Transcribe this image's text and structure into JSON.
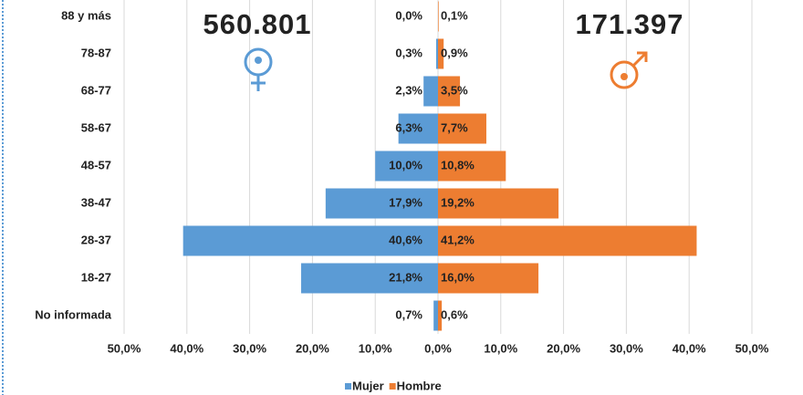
{
  "chart_data": {
    "type": "pyramid",
    "categories": [
      "88 y más",
      "78-87",
      "68-77",
      "58-67",
      "48-57",
      "38-47",
      "28-37",
      "18-27",
      "No informada"
    ],
    "series": [
      {
        "name": "Mujer",
        "color": "#5b9bd5",
        "side": "left",
        "values": [
          0.0,
          0.3,
          2.3,
          6.3,
          10.0,
          17.9,
          40.6,
          21.8,
          0.7
        ],
        "value_labels": [
          "0,0%",
          "0,3%",
          "2,3%",
          "6,3%",
          "10,0%",
          "17,9%",
          "40,6%",
          "21,8%",
          "0,7%"
        ]
      },
      {
        "name": "Hombre",
        "color": "#ed7d31",
        "side": "right",
        "values": [
          0.1,
          0.9,
          3.5,
          7.7,
          10.8,
          19.2,
          41.2,
          16.0,
          0.6
        ],
        "value_labels": [
          "0,1%",
          "0,9%",
          "3,5%",
          "7,7%",
          "10,8%",
          "19,2%",
          "41,2%",
          "16,0%",
          "0,6%"
        ]
      }
    ],
    "xlim": [
      0,
      50
    ],
    "xticks_left": [
      {
        "value": 50,
        "label": "50,0%"
      },
      {
        "value": 40,
        "label": "40,0%"
      },
      {
        "value": 30,
        "label": "30,0%"
      },
      {
        "value": 20,
        "label": "20,0%"
      },
      {
        "value": 10,
        "label": "10,0%"
      }
    ],
    "xticks_right": [
      {
        "value": 0,
        "label": "0,0%"
      },
      {
        "value": 10,
        "label": "10,0%"
      },
      {
        "value": 20,
        "label": "20,0%"
      },
      {
        "value": 30,
        "label": "30,0%"
      },
      {
        "value": 40,
        "label": "40,0%"
      },
      {
        "value": 50,
        "label": "50,0%"
      }
    ],
    "grid": true,
    "legend": "bottom",
    "annotations": [
      {
        "text": "560.801"
      },
      {
        "text": "171.397"
      }
    ]
  }
}
